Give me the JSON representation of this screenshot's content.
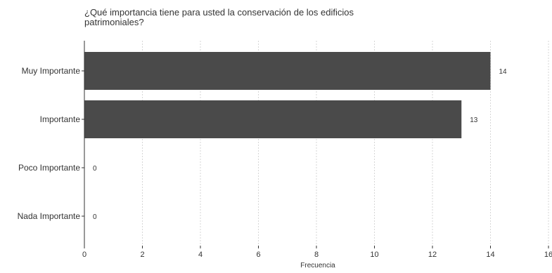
{
  "chart_data": {
    "type": "bar",
    "orientation": "horizontal",
    "title_lines": [
      "¿Qué importancia tiene para usted la conservación de los edificios",
      "patrimoniales?"
    ],
    "categories": [
      "Muy Importante",
      "Importante",
      "Poco Importante",
      "Nada Importante"
    ],
    "values": [
      14,
      13,
      0,
      0
    ],
    "xlabel": "Frecuencia",
    "ylabel": "",
    "xlim": [
      0,
      16
    ],
    "xticks": [
      0,
      2,
      4,
      6,
      8,
      10,
      12,
      14,
      16
    ],
    "grid": true,
    "bar_color": "#4a4a4a",
    "text_color": "#333333"
  }
}
